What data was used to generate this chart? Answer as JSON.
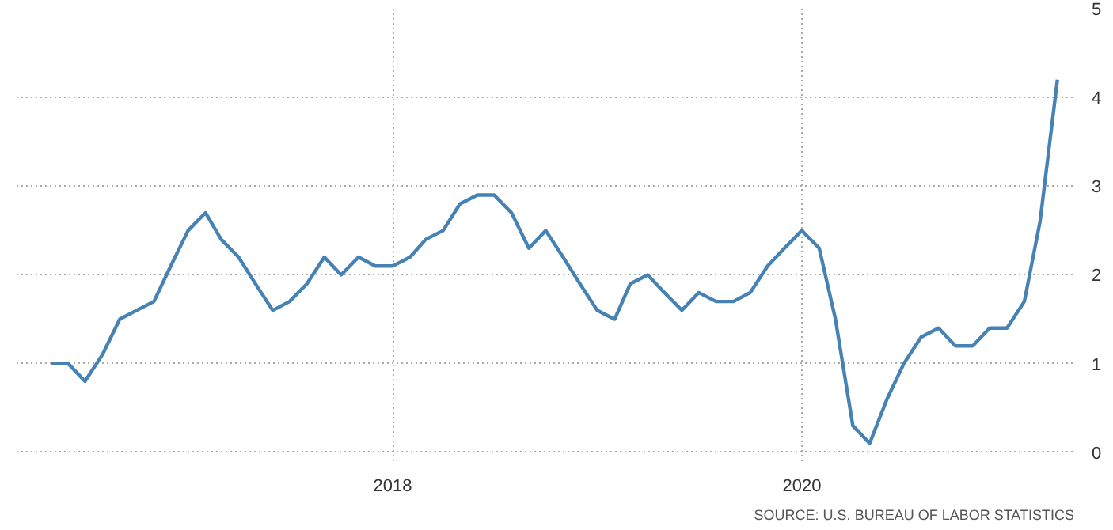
{
  "chart_data": {
    "type": "line",
    "x": [
      "2016-05",
      "2016-06",
      "2016-07",
      "2016-08",
      "2016-09",
      "2016-10",
      "2016-11",
      "2016-12",
      "2017-01",
      "2017-02",
      "2017-03",
      "2017-04",
      "2017-05",
      "2017-06",
      "2017-07",
      "2017-08",
      "2017-09",
      "2017-10",
      "2017-11",
      "2017-12",
      "2018-01",
      "2018-02",
      "2018-03",
      "2018-04",
      "2018-05",
      "2018-06",
      "2018-07",
      "2018-08",
      "2018-09",
      "2018-10",
      "2018-11",
      "2018-12",
      "2019-01",
      "2019-02",
      "2019-03",
      "2019-04",
      "2019-05",
      "2019-06",
      "2019-07",
      "2019-08",
      "2019-09",
      "2019-10",
      "2019-11",
      "2019-12",
      "2020-01",
      "2020-02",
      "2020-03",
      "2020-04",
      "2020-05",
      "2020-06",
      "2020-07",
      "2020-08",
      "2020-09",
      "2020-10",
      "2020-11",
      "2020-12",
      "2021-01",
      "2021-02",
      "2021-03",
      "2021-04"
    ],
    "series": [
      {
        "color": "#4682b4",
        "values": [
          1.0,
          1.0,
          0.8,
          1.1,
          1.5,
          1.6,
          1.7,
          2.1,
          2.5,
          2.7,
          2.4,
          2.2,
          1.9,
          1.6,
          1.7,
          1.9,
          2.2,
          2.0,
          2.2,
          2.1,
          2.1,
          2.2,
          2.4,
          2.5,
          2.8,
          2.9,
          2.9,
          2.7,
          2.3,
          2.5,
          2.2,
          1.9,
          1.6,
          1.5,
          1.9,
          2.0,
          1.8,
          1.6,
          1.8,
          1.7,
          1.7,
          1.8,
          2.1,
          2.3,
          2.5,
          2.3,
          1.5,
          0.3,
          0.1,
          0.6,
          1.0,
          1.3,
          1.4,
          1.2,
          1.2,
          1.4,
          1.4,
          1.7,
          2.6,
          4.2
        ]
      }
    ],
    "xlim": [
      "2016-03",
      "2021-05"
    ],
    "xticks": [
      "2018",
      "2020"
    ],
    "ylim": [
      -0.1,
      5
    ],
    "yticks": [
      0,
      1,
      2,
      3,
      4,
      5
    ],
    "grid": true,
    "line_style": "solid",
    "marker": "none",
    "annotations": [
      "SOURCE: U.S. BUREAU OF LABOR STATISTICS"
    ]
  }
}
